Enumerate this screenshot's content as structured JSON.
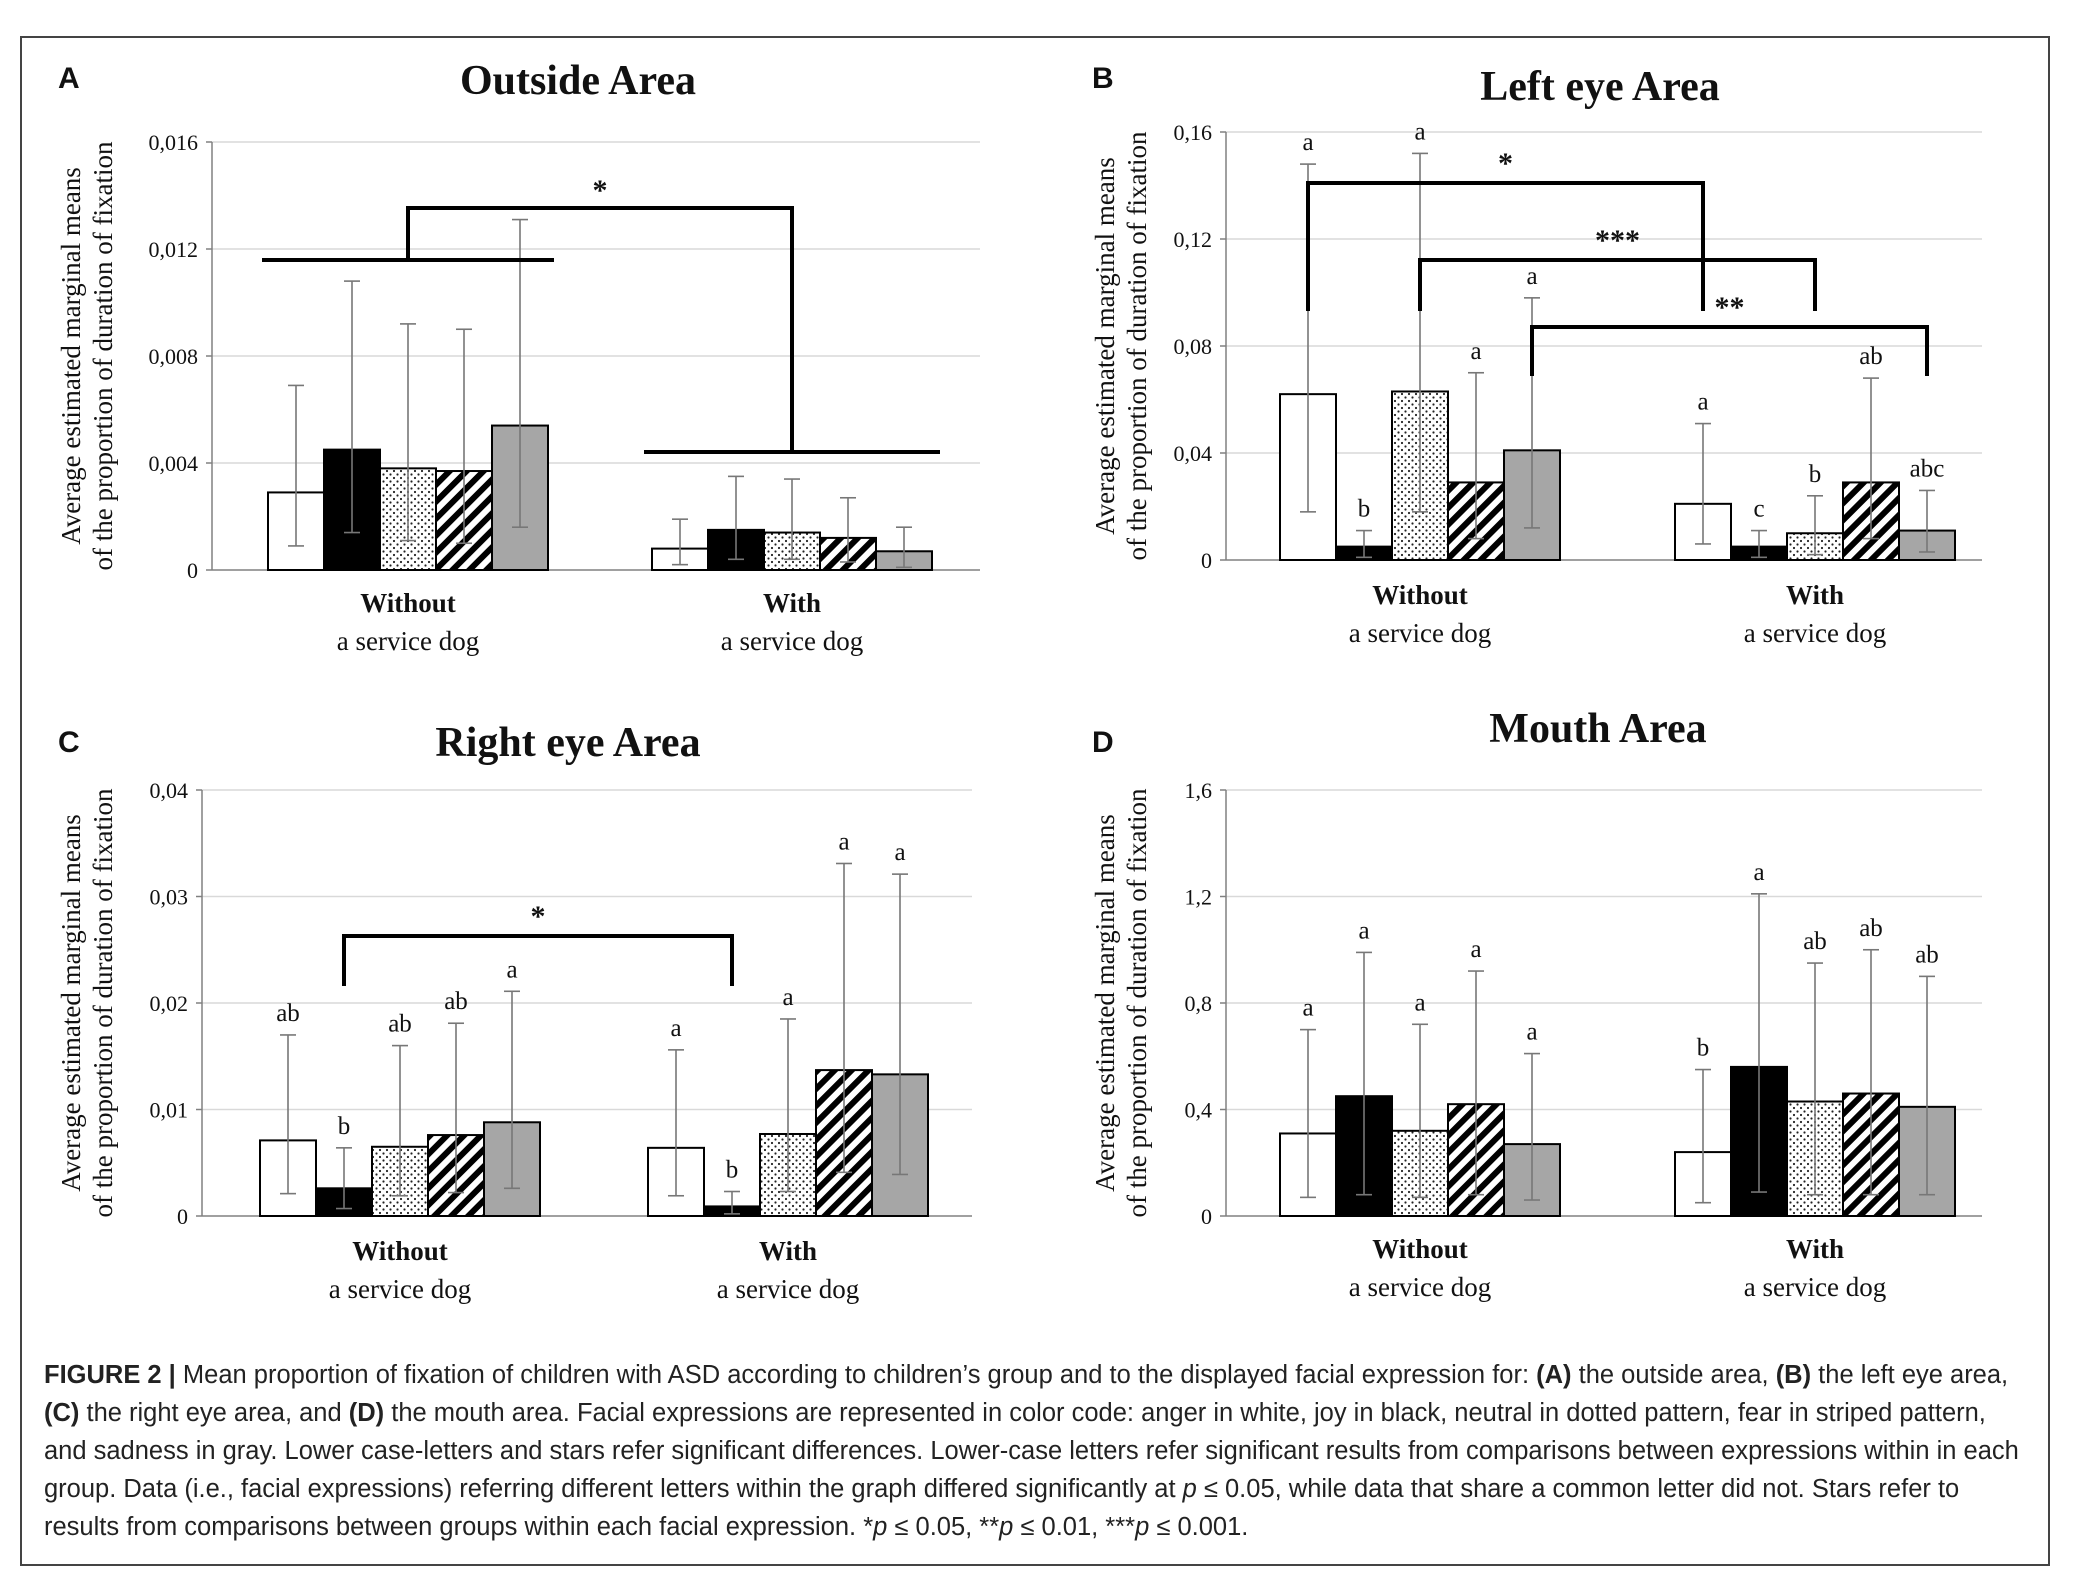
{
  "chart_data": [
    {
      "panel": "A",
      "type": "bar",
      "title": "Outside Area",
      "ylabel": [
        "Average estimated marginal means",
        "of the proportion of duration of fixation"
      ],
      "ylim": [
        0,
        0.016
      ],
      "yticks": [
        "0",
        "0,004",
        "0,008",
        "0,012",
        "0,016"
      ],
      "ytick_values": [
        0,
        0.004,
        0.008,
        0.012,
        0.016
      ],
      "groups": [
        {
          "label": "Without",
          "sub": "a service dog"
        },
        {
          "label": "With",
          "sub": "a service dog"
        }
      ],
      "series": [
        {
          "expression": "anger",
          "values": [
            0.0029,
            0.0008
          ],
          "err_hi": [
            0.0069,
            0.0019
          ],
          "err_lo": [
            0.0009,
            0.0002
          ],
          "letters": [
            "",
            ""
          ]
        },
        {
          "expression": "joy",
          "values": [
            0.0045,
            0.0015
          ],
          "err_hi": [
            0.0108,
            0.0035
          ],
          "err_lo": [
            0.0014,
            0.0004
          ],
          "letters": [
            "",
            ""
          ]
        },
        {
          "expression": "neutral",
          "values": [
            0.0038,
            0.0014
          ],
          "err_hi": [
            0.0092,
            0.0034
          ],
          "err_lo": [
            0.0011,
            0.0004
          ],
          "letters": [
            "",
            ""
          ]
        },
        {
          "expression": "fear",
          "values": [
            0.0037,
            0.0012
          ],
          "err_hi": [
            0.009,
            0.0027
          ],
          "err_lo": [
            0.001,
            0.0003
          ],
          "letters": [
            "",
            ""
          ]
        },
        {
          "expression": "sadness",
          "values": [
            0.0054,
            0.0007
          ],
          "err_hi": [
            0.0131,
            0.0016
          ],
          "err_lo": [
            0.0016,
            0.0001
          ],
          "letters": [
            "",
            ""
          ]
        }
      ],
      "annotations": [
        {
          "type": "group-bracket",
          "label": "*"
        }
      ]
    },
    {
      "panel": "B",
      "type": "bar",
      "title": "Left eye Area",
      "ylabel": [
        "Average estimated marginal means",
        "of the proportion of duration of fixation"
      ],
      "ylim": [
        0,
        0.16
      ],
      "yticks": [
        "0",
        "0,04",
        "0,08",
        "0,12",
        "0,16"
      ],
      "ytick_values": [
        0,
        0.04,
        0.08,
        0.12,
        0.16
      ],
      "groups": [
        {
          "label": "Without",
          "sub": "a service dog"
        },
        {
          "label": "With",
          "sub": "a service dog"
        }
      ],
      "series": [
        {
          "expression": "anger",
          "values": [
            0.062,
            0.021
          ],
          "err_hi": [
            0.148,
            0.051
          ],
          "err_lo": [
            0.018,
            0.006
          ],
          "letters": [
            "a",
            "a"
          ]
        },
        {
          "expression": "joy",
          "values": [
            0.005,
            0.005
          ],
          "err_hi": [
            0.011,
            0.011
          ],
          "err_lo": [
            0.001,
            0.001
          ],
          "letters": [
            "b",
            "c"
          ]
        },
        {
          "expression": "neutral",
          "values": [
            0.063,
            0.01
          ],
          "err_hi": [
            0.152,
            0.024
          ],
          "err_lo": [
            0.018,
            0.002
          ],
          "letters": [
            "a",
            "b"
          ]
        },
        {
          "expression": "fear",
          "values": [
            0.029,
            0.029
          ],
          "err_hi": [
            0.07,
            0.068
          ],
          "err_lo": [
            0.008,
            0.008
          ],
          "letters": [
            "a",
            "ab"
          ]
        },
        {
          "expression": "sadness",
          "values": [
            0.041,
            0.011
          ],
          "err_hi": [
            0.098,
            0.026
          ],
          "err_lo": [
            0.012,
            0.003
          ],
          "letters": [
            "a",
            "abc"
          ]
        }
      ],
      "annotations": [
        {
          "type": "bracket",
          "from_series": 0,
          "label": "*"
        },
        {
          "type": "bracket",
          "from_series": 2,
          "label": "***"
        },
        {
          "type": "bracket",
          "from_series": 4,
          "label": "**"
        }
      ]
    },
    {
      "panel": "C",
      "type": "bar",
      "title": "Right eye Area",
      "ylabel": [
        "Average estimated marginal means",
        "of the proportion of duration of fixation"
      ],
      "ylim": [
        0,
        0.04
      ],
      "yticks": [
        "0",
        "0,01",
        "0,02",
        "0,03",
        "0,04"
      ],
      "ytick_values": [
        0,
        0.01,
        0.02,
        0.03,
        0.04
      ],
      "groups": [
        {
          "label": "Without",
          "sub": "a service dog"
        },
        {
          "label": "With",
          "sub": "a service dog"
        }
      ],
      "series": [
        {
          "expression": "anger",
          "values": [
            0.0071,
            0.0064
          ],
          "err_hi": [
            0.017,
            0.0156
          ],
          "err_lo": [
            0.0021,
            0.0019
          ],
          "letters": [
            "ab",
            "a"
          ]
        },
        {
          "expression": "joy",
          "values": [
            0.0026,
            0.0009
          ],
          "err_hi": [
            0.0064,
            0.0023
          ],
          "err_lo": [
            0.0007,
            0.0002
          ],
          "letters": [
            "b",
            "b"
          ]
        },
        {
          "expression": "neutral",
          "values": [
            0.0065,
            0.0077
          ],
          "err_hi": [
            0.016,
            0.0185
          ],
          "err_lo": [
            0.0019,
            0.0023
          ],
          "letters": [
            "ab",
            "a"
          ]
        },
        {
          "expression": "fear",
          "values": [
            0.0076,
            0.0137
          ],
          "err_hi": [
            0.0181,
            0.0331
          ],
          "err_lo": [
            0.0022,
            0.0041
          ],
          "letters": [
            "ab",
            "a"
          ]
        },
        {
          "expression": "sadness",
          "values": [
            0.0088,
            0.0133
          ],
          "err_hi": [
            0.0211,
            0.0321
          ],
          "err_lo": [
            0.0026,
            0.0039
          ],
          "letters": [
            "a",
            "a"
          ]
        }
      ],
      "annotations": [
        {
          "type": "bracket",
          "from_series": 1,
          "label": "*"
        }
      ]
    },
    {
      "panel": "D",
      "type": "bar",
      "title": "Mouth Area",
      "ylabel": [
        "Average estimated marginal means",
        "of the proportion of duration of fixation"
      ],
      "ylim": [
        0,
        1.6
      ],
      "yticks": [
        "0",
        "0,4",
        "0,8",
        "1,2",
        "1,6"
      ],
      "ytick_values": [
        0,
        0.4,
        0.8,
        1.2,
        1.6
      ],
      "groups": [
        {
          "label": "Without",
          "sub": "a service dog"
        },
        {
          "label": "With",
          "sub": "a service dog"
        }
      ],
      "series": [
        {
          "expression": "anger",
          "values": [
            0.31,
            0.24
          ],
          "err_hi": [
            0.7,
            0.55
          ],
          "err_lo": [
            0.07,
            0.05
          ],
          "letters": [
            "a",
            "b"
          ]
        },
        {
          "expression": "joy",
          "values": [
            0.45,
            0.56
          ],
          "err_hi": [
            0.99,
            1.21
          ],
          "err_lo": [
            0.08,
            0.09
          ],
          "letters": [
            "a",
            "a"
          ]
        },
        {
          "expression": "neutral",
          "values": [
            0.32,
            0.43
          ],
          "err_hi": [
            0.72,
            0.95
          ],
          "err_lo": [
            0.07,
            0.08
          ],
          "letters": [
            "a",
            "ab"
          ]
        },
        {
          "expression": "fear",
          "values": [
            0.42,
            0.46
          ],
          "err_hi": [
            0.92,
            1.0
          ],
          "err_lo": [
            0.08,
            0.08
          ],
          "letters": [
            "a",
            "ab"
          ]
        },
        {
          "expression": "sadness",
          "values": [
            0.27,
            0.41
          ],
          "err_hi": [
            0.61,
            0.9
          ],
          "err_lo": [
            0.06,
            0.08
          ],
          "letters": [
            "a",
            "ab"
          ]
        }
      ],
      "annotations": []
    }
  ],
  "styles": {
    "anger": "#ffffff",
    "joy": "#000000",
    "neutral": "dotted",
    "fear": "striped",
    "sadness": "#a6a6a6",
    "grid": "#d9d9d9",
    "axis": "#808080"
  },
  "caption": {
    "label": "FIGURE 2 |",
    "parts": [
      {
        "b": false,
        "t": " Mean proportion of fixation of children with ASD according to children’s group and to the displayed facial expression for: "
      },
      {
        "b": true,
        "t": "(A)"
      },
      {
        "b": false,
        "t": " the outside area, "
      },
      {
        "b": true,
        "t": "(B)"
      },
      {
        "b": false,
        "t": " the left eye area, "
      },
      {
        "b": true,
        "t": "(C)"
      },
      {
        "b": false,
        "t": " the right eye area, and "
      },
      {
        "b": true,
        "t": "(D)"
      },
      {
        "b": false,
        "t": " the mouth area. Facial expressions are represented in color code: anger in white, joy in black, neutral in dotted pattern, fear in striped pattern, and sadness in gray. Lower case-letters and stars refer significant differences. Lower-case letters refer significant results from comparisons between expressions within in each group. Data (i.e., facial expressions) referring different letters within the graph differed significantly at "
      },
      {
        "i": true,
        "t": "p"
      },
      {
        "b": false,
        "t": " ≤ 0.05, while data that share a common letter did not. Stars refer to results from comparisons between groups within each facial expression. *"
      },
      {
        "i": true,
        "t": "p"
      },
      {
        "b": false,
        "t": " ≤ 0.05, **"
      },
      {
        "i": true,
        "t": "p"
      },
      {
        "b": false,
        "t": " ≤ 0.01, ***"
      },
      {
        "i": true,
        "t": "p"
      },
      {
        "b": false,
        "t": " ≤ 0.001."
      }
    ]
  }
}
